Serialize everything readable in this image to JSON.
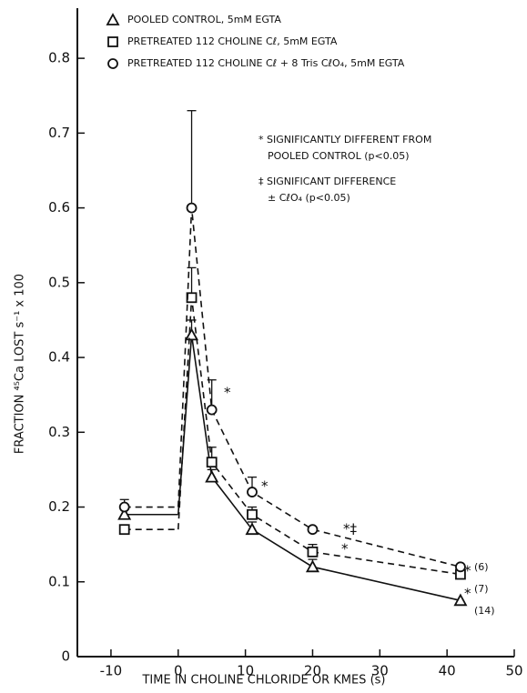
{
  "chart_data": {
    "type": "line",
    "x_label": "TIME IN CHOLINE CHLORIDE OR KMES (s)",
    "y_label": "FRACTION ⁴⁵Ca LOST s⁻¹ x 100",
    "x": [
      -8,
      2,
      5,
      11,
      20,
      42
    ],
    "xlim": [
      -15,
      50
    ],
    "xticks": [
      -10,
      0,
      10,
      20,
      30,
      40,
      50
    ],
    "ylim": [
      0,
      0.85
    ],
    "yticks": [
      0,
      0.1,
      0.2,
      0.3,
      0.4,
      0.5,
      0.6,
      0.7,
      0.8
    ],
    "baseline_to_zero": true,
    "series": [
      {
        "name": "POOLED CONTROL, 5mM EGTA",
        "marker": "triangle",
        "dash": false,
        "color": "#111",
        "values": [
          0.19,
          0.43,
          0.24,
          0.17,
          0.12,
          0.075
        ],
        "errors": [
          0.01,
          0.02,
          0.01,
          0.01,
          0.01,
          null
        ]
      },
      {
        "name": "PRETREATED 112 CHOLINE Cℓ, 5mM EGTA",
        "marker": "square",
        "dash": true,
        "color": "#111",
        "values": [
          0.17,
          0.48,
          0.26,
          0.19,
          0.14,
          0.11
        ],
        "errors": [
          null,
          0.04,
          0.02,
          0.01,
          0.01,
          null
        ]
      },
      {
        "name": "PRETREATED 112 CHOLINE Cℓ + 8 Tris CℓO₄, 5mM EGTA",
        "marker": "circle",
        "dash": true,
        "color": "#111",
        "values": [
          0.2,
          0.6,
          0.33,
          0.22,
          0.17,
          0.12
        ],
        "errors": [
          0.01,
          0.13,
          0.04,
          0.02,
          null,
          null
        ]
      }
    ],
    "notes": [
      "* SIGNIFICANTLY DIFFERENT FROM",
      "POOLED CONTROL (p<0.05)",
      "‡ SIGNIFICANT DIFFERENCE",
      "± CℓO₄ (p<0.05)"
    ],
    "annotations": [
      "*",
      "*",
      "*‡",
      "*",
      "*",
      "*",
      "(6)",
      "(7)",
      "(14)"
    ]
  }
}
